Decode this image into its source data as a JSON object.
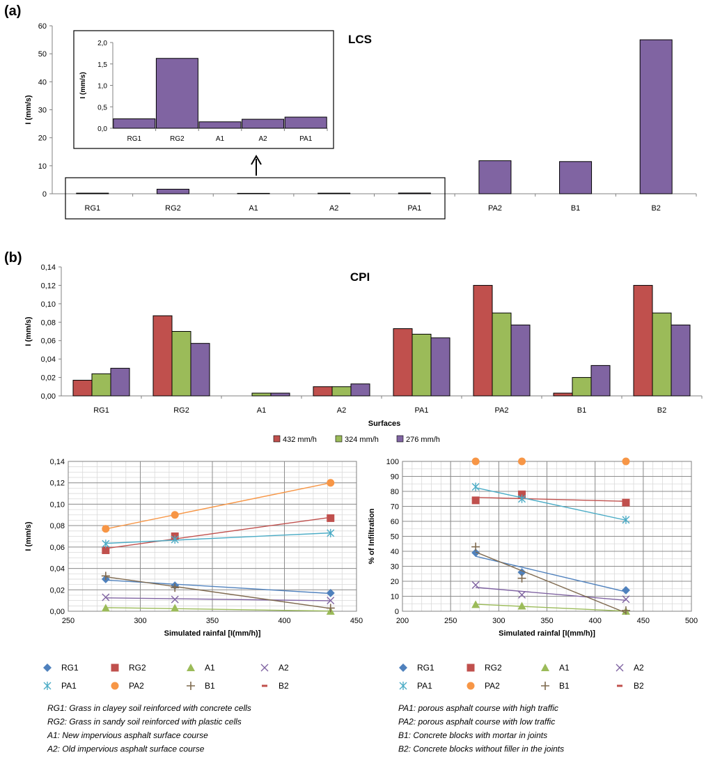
{
  "colors": {
    "s432": "#c0504d",
    "s324": "#9bbb59",
    "s276": "#8064a2",
    "RG1": "#4f81bd",
    "RG2": "#c0504d",
    "A1": "#9bbb59",
    "A2": "#8064a2",
    "PA1": "#4bacc6",
    "PA2": "#f79646",
    "B1": "#7f6a4f",
    "B2": "#c0504d",
    "bar_stroke": "#000000",
    "grid": "#bfbfbf"
  },
  "panel_labels": {
    "a": "(a)",
    "b": "(b)"
  },
  "chart_data": [
    {
      "id": "lcs",
      "type": "bar",
      "title": "LCS",
      "ylabel": "I (mm/s)",
      "xlabel": "",
      "ylim": [
        0,
        60
      ],
      "yticks": [
        "0",
        "10",
        "20",
        "30",
        "40",
        "50",
        "60"
      ],
      "categories": [
        "RG1",
        "RG2",
        "A1",
        "A2",
        "PA1",
        "PA2",
        "B1",
        "B2"
      ],
      "values": [
        0.22,
        1.63,
        0.15,
        0.21,
        0.26,
        11.8,
        11.5,
        55
      ]
    },
    {
      "id": "lcs_inset",
      "type": "bar",
      "title": "",
      "ylabel": "I (mm/s)",
      "ylim": [
        0,
        2
      ],
      "yticks": [
        "0,0",
        "0,5",
        "1,0",
        "1,5",
        "2,0"
      ],
      "categories": [
        "RG1",
        "RG2",
        "A1",
        "A2",
        "PA1"
      ],
      "values": [
        0.22,
        1.63,
        0.15,
        0.21,
        0.26
      ]
    },
    {
      "id": "cpi",
      "type": "bar",
      "title": "CPI",
      "ylabel": "I (mm/s)",
      "xlabel": "Surfaces",
      "ylim": [
        0,
        0.14
      ],
      "yticks": [
        "0,00",
        "0,02",
        "0,04",
        "0,06",
        "0,08",
        "0,10",
        "0,12",
        "0,14"
      ],
      "categories": [
        "RG1",
        "RG2",
        "A1",
        "A2",
        "PA1",
        "PA2",
        "B1",
        "B2"
      ],
      "series": [
        {
          "name": "432 mm/h",
          "values": [
            0.017,
            0.087,
            0.0,
            0.01,
            0.073,
            0.12,
            0.003,
            0.12
          ]
        },
        {
          "name": "324 mm/h",
          "values": [
            0.024,
            0.07,
            0.003,
            0.01,
            0.067,
            0.09,
            0.02,
            0.09
          ]
        },
        {
          "name": "276 mm/h",
          "values": [
            0.03,
            0.057,
            0.003,
            0.013,
            0.063,
            0.077,
            0.033,
            0.077
          ]
        }
      ]
    },
    {
      "id": "scatter_i",
      "type": "scatter",
      "ylabel": "I (mm/s)",
      "xlabel": "Simulated rainfal [I(mm/h)]",
      "xlim": [
        250,
        450
      ],
      "ylim": [
        0,
        0.14
      ],
      "xticks": [
        "250",
        "300",
        "350",
        "400",
        "450"
      ],
      "yticks": [
        "0,00",
        "0,02",
        "0,04",
        "0,06",
        "0,08",
        "0,10",
        "0,12",
        "0,14"
      ],
      "series": [
        {
          "name": "RG1",
          "x": [
            276,
            324,
            432
          ],
          "y": [
            0.03,
            0.024,
            0.017
          ]
        },
        {
          "name": "RG2",
          "x": [
            276,
            324,
            432
          ],
          "y": [
            0.057,
            0.07,
            0.087
          ]
        },
        {
          "name": "A1",
          "x": [
            276,
            324,
            432
          ],
          "y": [
            0.003,
            0.003,
            0.0
          ]
        },
        {
          "name": "A2",
          "x": [
            276,
            324,
            432
          ],
          "y": [
            0.013,
            0.011,
            0.01
          ]
        },
        {
          "name": "PA1",
          "x": [
            276,
            324,
            432
          ],
          "y": [
            0.063,
            0.067,
            0.073
          ]
        },
        {
          "name": "PA2",
          "x": [
            276,
            324,
            432
          ],
          "y": [
            0.077,
            0.09,
            0.12
          ]
        },
        {
          "name": "B1",
          "x": [
            276,
            324,
            432
          ],
          "y": [
            0.033,
            0.022,
            0.003
          ]
        },
        {
          "name": "B2",
          "x": [],
          "y": []
        }
      ]
    },
    {
      "id": "scatter_pct",
      "type": "scatter",
      "ylabel": "% of Infiltration",
      "xlabel": "Simulated rainfal [I(mm/h)]",
      "xlim": [
        200,
        500
      ],
      "ylim": [
        0,
        100
      ],
      "xticks": [
        "200",
        "250",
        "300",
        "350",
        "400",
        "450",
        "500"
      ],
      "yticks": [
        "0",
        "10",
        "20",
        "30",
        "40",
        "50",
        "60",
        "70",
        "80",
        "90",
        "100"
      ],
      "series": [
        {
          "name": "RG1",
          "x": [
            276,
            324,
            432
          ],
          "y": [
            39,
            26,
            14
          ]
        },
        {
          "name": "RG2",
          "x": [
            276,
            324,
            432
          ],
          "y": [
            74,
            78,
            72.5
          ]
        },
        {
          "name": "A1",
          "x": [
            276,
            324,
            432
          ],
          "y": [
            4.5,
            3.5,
            0
          ]
        },
        {
          "name": "A2",
          "x": [
            276,
            324,
            432
          ],
          "y": [
            17.5,
            11,
            8
          ]
        },
        {
          "name": "PA1",
          "x": [
            276,
            324,
            432
          ],
          "y": [
            83,
            75,
            61
          ]
        },
        {
          "name": "PA2",
          "x": [
            276,
            324,
            432
          ],
          "y": [
            100,
            100,
            100
          ]
        },
        {
          "name": "B1",
          "x": [
            276,
            324,
            432
          ],
          "y": [
            43,
            22,
            0.5
          ]
        },
        {
          "name": "B2",
          "x": [],
          "y": []
        }
      ]
    }
  ],
  "legend_bottom": [
    "RG1",
    "RG2",
    "A1",
    "A2",
    "PA1",
    "PA2",
    "B1",
    "B2"
  ],
  "notes_left": [
    "RG1: Grass in clayey soil reinforced with concrete cells",
    "RG2: Grass in sandy soil reinforced with plastic cells",
    "A1: New impervious asphalt surface course",
    "A2: Old impervious asphalt surface course"
  ],
  "notes_right": [
    "PA1: porous asphalt course with high traffic",
    "PA2: porous asphalt course with low traffic",
    "B1: Concrete blocks with mortar in joints",
    "B2: Concrete blocks without filler in the joints"
  ]
}
